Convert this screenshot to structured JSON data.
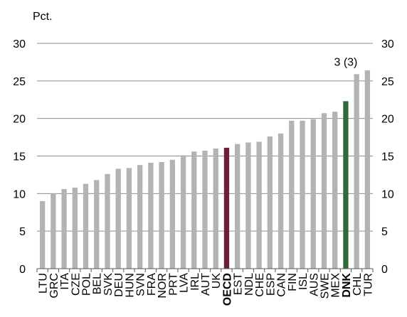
{
  "chart_data": {
    "type": "bar",
    "unit_label": "Pct.",
    "ylim": [
      0,
      30
    ],
    "yticks": [
      0,
      5,
      10,
      15,
      20,
      25,
      30
    ],
    "grid": true,
    "secondary_axis": true,
    "categories": [
      "LTU",
      "GRC",
      "ITA",
      "CZE",
      "POL",
      "BEL",
      "SVK",
      "DEU",
      "HUN",
      "SVN",
      "FRA",
      "NOR",
      "PRT",
      "LVA",
      "IRL",
      "AUT",
      "UK",
      "OECD",
      "EST",
      "NDL",
      "CHE",
      "ESP",
      "CAN",
      "FIN",
      "ISL",
      "AUS",
      "SWE",
      "MEX",
      "DNK",
      "CHL",
      "TUR"
    ],
    "values": [
      9.0,
      10.0,
      10.6,
      10.8,
      11.3,
      11.8,
      12.6,
      13.3,
      13.4,
      13.8,
      14.1,
      14.2,
      14.5,
      15.1,
      15.6,
      15.7,
      16.0,
      16.1,
      16.6,
      16.8,
      16.9,
      17.6,
      18.0,
      19.7,
      19.7,
      19.9,
      20.7,
      20.9,
      22.3,
      25.9,
      26.4
    ],
    "bold_categories": [
      "OECD",
      "DNK"
    ],
    "colors": {
      "default": "#b3b3b3",
      "OECD": "#6b1e34",
      "DNK": "#2e6b3a",
      "grid": "#8c8c8c",
      "axis": "#595959"
    },
    "annotation": {
      "category": "DNK",
      "text": "3 (3)"
    }
  }
}
